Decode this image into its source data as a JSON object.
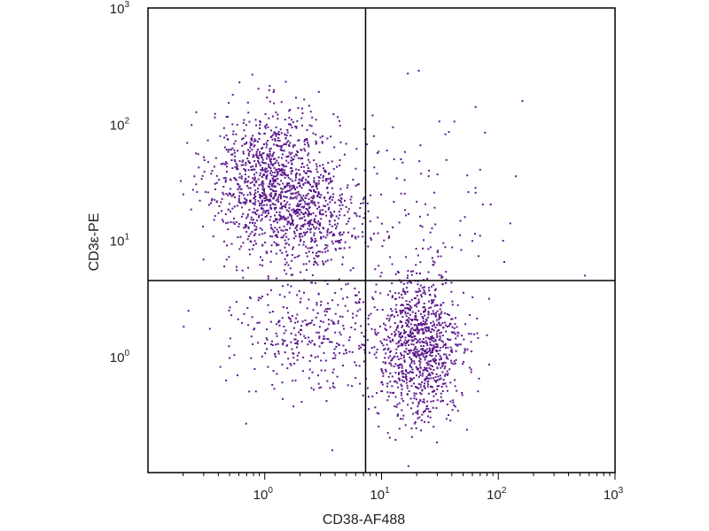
{
  "chart_data": {
    "type": "scatter",
    "title": "",
    "xlabel": "CD38-AF488",
    "ylabel": "CD3ε-PE",
    "x_scale": "log",
    "y_scale": "log",
    "xlim": [
      0.1,
      1000
    ],
    "ylim": [
      0.1,
      1000
    ],
    "grid": false,
    "x_ticks": [
      {
        "value": 1,
        "base": "10",
        "exp": "0"
      },
      {
        "value": 10,
        "base": "10",
        "exp": "1"
      },
      {
        "value": 100,
        "base": "10",
        "exp": "2"
      },
      {
        "value": 1000,
        "base": "10",
        "exp": "3"
      }
    ],
    "y_ticks": [
      {
        "value": 1,
        "base": "10",
        "exp": "0"
      },
      {
        "value": 10,
        "base": "10",
        "exp": "1"
      },
      {
        "value": 100,
        "base": "10",
        "exp": "2"
      },
      {
        "value": 1000,
        "base": "10",
        "exp": "3"
      }
    ],
    "quadrant_gate": {
      "x": 7.3,
      "y": 4.5
    },
    "point_color": "#5b1a8c",
    "populations": [
      {
        "center": [
          1.2,
          33
        ],
        "spread": [
          0.55,
          0.6
        ],
        "count": 1100
      },
      {
        "center": [
          2.6,
          14
        ],
        "spread": [
          0.45,
          0.45
        ],
        "count": 350
      },
      {
        "center": [
          21,
          1.15
        ],
        "spread": [
          0.38,
          0.62
        ],
        "count": 1000
      },
      {
        "center": [
          2.4,
          1.7
        ],
        "spread": [
          0.65,
          0.55
        ],
        "count": 340
      },
      {
        "center": [
          22,
          20
        ],
        "spread": [
          0.75,
          0.9
        ],
        "count": 120
      }
    ]
  }
}
